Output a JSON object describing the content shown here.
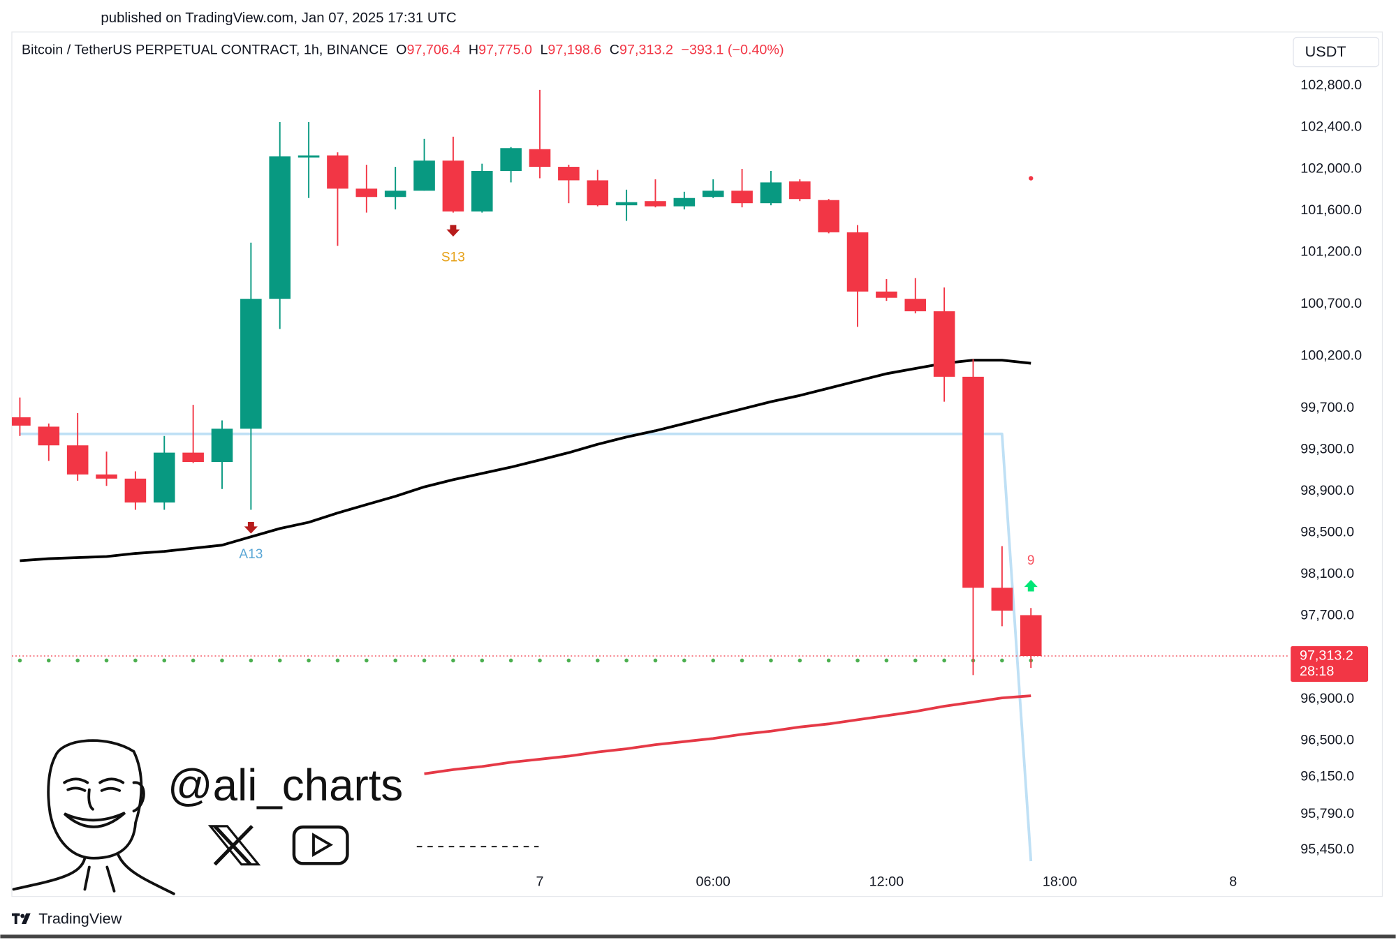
{
  "page": {
    "published": "published on TradingView.com, Jan 07, 2025 17:31 UTC",
    "footer": "TradingView",
    "watermark": "@ali_charts"
  },
  "chart_data": {
    "type": "candlestick",
    "header": {
      "symbol": "Bitcoin / TetherUS PERPETUAL CONTRACT, 1h, BINANCE",
      "o_key": "O",
      "o": "97,706.4",
      "h_key": "H",
      "h": "97,775.0",
      "l_key": "L",
      "l": "97,198.6",
      "c_key": "C",
      "c": "97,313.2",
      "change": "−393.1 (−0.40%)"
    },
    "currency": "USDT",
    "categories": [
      null,
      null,
      null,
      null,
      null,
      null,
      null,
      null,
      null,
      null,
      null,
      null,
      null,
      null,
      null,
      null,
      null,
      null,
      "7",
      null,
      null,
      null,
      null,
      null,
      "06:00",
      null,
      null,
      null,
      null,
      null,
      "12:00",
      null,
      null,
      null,
      null,
      null,
      "18:00",
      null,
      null,
      null,
      null,
      null,
      "8"
    ],
    "open": [
      99610,
      99520,
      99340,
      99060,
      99020,
      98790,
      99270,
      99180,
      99500,
      100750,
      102110,
      102130,
      101810,
      101730,
      101790,
      102080,
      101590,
      101980,
      102190,
      102020,
      101890,
      101650,
      101690,
      101640,
      101730,
      101790,
      101670,
      101880,
      101700,
      101390,
      100820,
      100750,
      100630,
      100000,
      97970,
      97706.4,
      null,
      null,
      null,
      null,
      null,
      null,
      null
    ],
    "high": [
      99800,
      99550,
      99650,
      99280,
      99090,
      99430,
      99730,
      99580,
      101290,
      102450,
      102450,
      102160,
      102040,
      102020,
      102290,
      102310,
      102050,
      102210,
      102760,
      102040,
      101990,
      101800,
      101900,
      101780,
      101900,
      102000,
      101980,
      101900,
      101710,
      101460,
      100940,
      100950,
      100860,
      100170,
      98370,
      97775,
      null,
      null,
      null,
      null,
      null,
      null,
      null
    ],
    "low": [
      99430,
      99190,
      99000,
      98950,
      98720,
      98720,
      99170,
      98920,
      98720,
      100460,
      101720,
      101260,
      101580,
      101610,
      101790,
      101580,
      101580,
      101870,
      101910,
      101670,
      101640,
      101500,
      101630,
      101610,
      101720,
      101630,
      101650,
      101690,
      101380,
      100480,
      100730,
      100610,
      99760,
      97130,
      97600,
      97198.6,
      null,
      null,
      null,
      null,
      null,
      null,
      null
    ],
    "close": [
      99530,
      99340,
      99060,
      99020,
      98790,
      99270,
      99180,
      99500,
      100750,
      102120,
      102130,
      101810,
      101730,
      101790,
      102080,
      101590,
      101980,
      102200,
      102020,
      101890,
      101650,
      101680,
      101640,
      101720,
      101790,
      101670,
      101870,
      101710,
      101390,
      100820,
      100760,
      100630,
      100000,
      97970,
      97750,
      97313.2,
      null,
      null,
      null,
      null,
      null,
      null,
      null
    ],
    "up_color": "#089981",
    "down_color": "#f23645",
    "lines": [
      {
        "color": "#bfe0f5",
        "values": [
          99450,
          99450,
          99450,
          99450,
          99450,
          99450,
          99450,
          99450,
          99450,
          99450,
          99450,
          99450,
          99450,
          99450,
          99450,
          99450,
          99450,
          99450,
          99450,
          99450,
          99450,
          99450,
          99450,
          99450,
          99450,
          99450,
          99450,
          99450,
          99450,
          99450,
          99450,
          99450,
          99450,
          99450,
          99450,
          95340,
          null,
          null,
          null,
          null,
          null,
          null,
          null
        ]
      },
      {
        "color": "#000000",
        "values": [
          98230,
          98250,
          98260,
          98270,
          98300,
          98320,
          98350,
          98380,
          98460,
          98540,
          98600,
          98690,
          98770,
          98850,
          98940,
          99010,
          99070,
          99130,
          99200,
          99270,
          99350,
          99420,
          99480,
          99550,
          99620,
          99690,
          99760,
          99820,
          99890,
          99960,
          100030,
          100080,
          100130,
          100160,
          100160,
          100130,
          null,
          null,
          null,
          null,
          null,
          null,
          null
        ]
      },
      {
        "color": "#e53946",
        "values": [
          null,
          null,
          null,
          null,
          null,
          null,
          null,
          null,
          null,
          null,
          null,
          null,
          null,
          null,
          96180,
          96220,
          96250,
          96290,
          96320,
          96350,
          96390,
          96420,
          96460,
          96490,
          96520,
          96560,
          96590,
          96630,
          96660,
          96700,
          96740,
          96780,
          96830,
          96870,
          96910,
          96930,
          null,
          null,
          null,
          null,
          null,
          null,
          null
        ]
      }
    ],
    "dots": {
      "color": "#4caf50",
      "values": [
        97270,
        97270,
        97270,
        97270,
        97270,
        97270,
        97270,
        97270,
        97270,
        97270,
        97270,
        97270,
        97270,
        97270,
        97270,
        97270,
        97270,
        97270,
        97270,
        97270,
        97270,
        97270,
        97270,
        97270,
        97270,
        97270,
        97270,
        97270,
        97270,
        97270,
        97270,
        97270,
        97270,
        97270,
        97270,
        97270,
        null,
        null,
        null,
        null,
        null,
        null,
        null
      ]
    },
    "markers": {
      "color": "#f23645",
      "values": [
        null,
        null,
        null,
        null,
        null,
        null,
        null,
        null,
        null,
        null,
        null,
        null,
        null,
        null,
        null,
        null,
        null,
        null,
        null,
        null,
        null,
        null,
        null,
        null,
        null,
        null,
        null,
        null,
        null,
        null,
        null,
        null,
        null,
        null,
        null,
        101910,
        null,
        null,
        null,
        null,
        null,
        null,
        null
      ]
    },
    "annotations": [
      {
        "text": "A13",
        "color": "#5aa7d6"
      },
      {
        "text": "S13",
        "color": "#e6a118"
      },
      {
        "text": "9",
        "color": "#f7525f"
      }
    ],
    "price_label": "97,313.2",
    "countdown": "28:18",
    "ylim": [
      95000,
      103300
    ],
    "yticks": [
      {
        "value": 102800,
        "label": "102,800.0"
      },
      {
        "value": 102400,
        "label": "102,400.0"
      },
      {
        "value": 102000,
        "label": "102,000.0"
      },
      {
        "value": 101600,
        "label": "101,600.0"
      },
      {
        "value": 101200,
        "label": "101,200.0"
      },
      {
        "value": 100700,
        "label": "100,700.0"
      },
      {
        "value": 100200,
        "label": "100,200.0"
      },
      {
        "value": 99700,
        "label": "99,700.0"
      },
      {
        "value": 99300,
        "label": "99,300.0"
      },
      {
        "value": 98900,
        "label": "98,900.0"
      },
      {
        "value": 98500,
        "label": "98,500.0"
      },
      {
        "value": 98100,
        "label": "98,100.0"
      },
      {
        "value": 97700,
        "label": "97,700.0"
      },
      {
        "value": 96900,
        "label": "96,900.0"
      },
      {
        "value": 96500,
        "label": "96,500.0"
      },
      {
        "value": 96150,
        "label": "96,150.0"
      },
      {
        "value": 95790,
        "label": "95,790.0"
      },
      {
        "value": 95450,
        "label": "95,450.0"
      }
    ],
    "grid": false
  }
}
